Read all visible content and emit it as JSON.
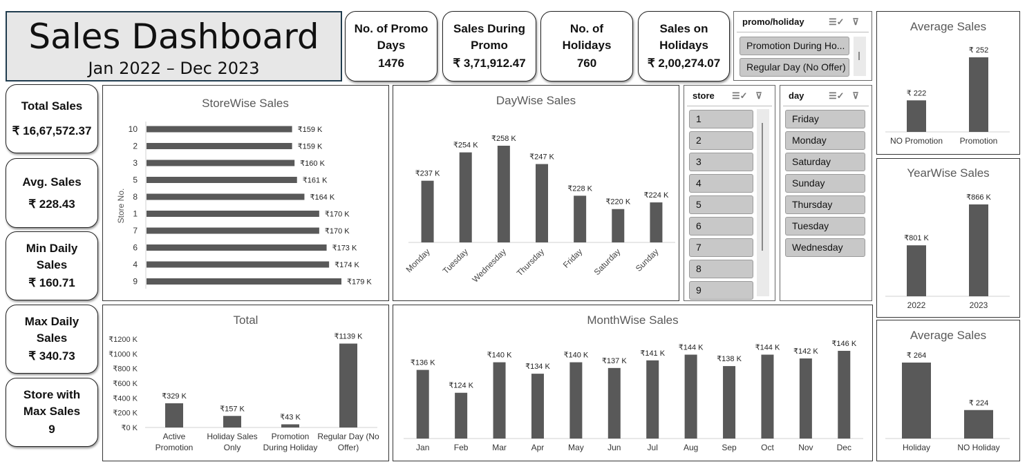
{
  "header": {
    "title": "Sales Dashboard",
    "subtitle": "Jan 2022 – Dec 2023"
  },
  "top_kpis": [
    {
      "label_lines": [
        "No. of Promo",
        "Days"
      ],
      "value": "1476"
    },
    {
      "label_lines": [
        "Sales During",
        "Promo"
      ],
      "value": "₹ 3,71,912.47"
    },
    {
      "label_lines": [
        "No. of",
        "Holidays"
      ],
      "value": "760"
    },
    {
      "label_lines": [
        "Sales on",
        "Holidays"
      ],
      "value": "₹ 2,00,274.07"
    }
  ],
  "side_kpis": [
    {
      "label_lines": [
        "Total Sales"
      ],
      "value": "₹ 16,67,572.37"
    },
    {
      "label_lines": [
        "Avg. Sales"
      ],
      "value": "₹ 228.43"
    },
    {
      "label_lines": [
        "Min Daily",
        "Sales"
      ],
      "value": "₹ 160.71"
    },
    {
      "label_lines": [
        "Max Daily",
        "Sales"
      ],
      "value": "₹ 340.73"
    },
    {
      "label_lines": [
        "Store with",
        "Max Sales"
      ],
      "value": "9"
    }
  ],
  "slicers": {
    "promo": {
      "title": "promo/holiday",
      "items": [
        "Promotion During Ho...",
        "Regular Day (No Offer)"
      ]
    },
    "store": {
      "title": "store",
      "items": [
        "1",
        "2",
        "3",
        "4",
        "5",
        "6",
        "7",
        "8",
        "9"
      ]
    },
    "day": {
      "title": "day",
      "items": [
        "Friday",
        "Monday",
        "Saturday",
        "Sunday",
        "Thursday",
        "Tuesday",
        "Wednesday"
      ]
    }
  },
  "colors": {
    "bar": "#595959",
    "axis": "#d0d0d0",
    "title_text": "#595959",
    "slicer_item": "#c8c8c8"
  },
  "icons": [
    "multi-select-icon",
    "clear-filter-icon"
  ],
  "chart_data": [
    {
      "id": "storewise",
      "type": "bar",
      "orientation": "horizontal",
      "title": "StoreWise Sales",
      "ylabel": "Store No.",
      "categories": [
        "10",
        "2",
        "3",
        "5",
        "8",
        "1",
        "7",
        "6",
        "4",
        "9"
      ],
      "values": [
        159,
        159,
        160,
        161,
        164,
        170,
        170,
        173,
        174,
        179
      ],
      "labels": [
        "₹159 K",
        "₹159 K",
        "₹160 K",
        "₹161 K",
        "₹164 K",
        "₹170 K",
        "₹170 K",
        "₹173 K",
        "₹174 K",
        "₹179 K"
      ]
    },
    {
      "id": "daywise",
      "type": "bar",
      "title": "DayWise Sales",
      "categories": [
        "Monday",
        "Tuesday",
        "Wednesday",
        "Thursday",
        "Friday",
        "Saturday",
        "Sunday"
      ],
      "values": [
        237,
        254,
        258,
        247,
        228,
        220,
        224
      ],
      "labels": [
        "₹237 K",
        "₹254 K",
        "₹258 K",
        "₹247 K",
        "₹228 K",
        "₹220 K",
        "₹224 K"
      ]
    },
    {
      "id": "avg_promo",
      "type": "bar",
      "title": "Average Sales",
      "categories": [
        "NO Promotion",
        "Promotion"
      ],
      "values": [
        222,
        252
      ],
      "labels": [
        "₹ 222",
        "₹ 252"
      ]
    },
    {
      "id": "yearwise",
      "type": "bar",
      "title": "YearWise Sales",
      "categories": [
        "2022",
        "2023"
      ],
      "values": [
        801,
        866
      ],
      "labels": [
        "₹801 K",
        "₹866 K"
      ]
    },
    {
      "id": "total",
      "type": "bar",
      "title": "Total",
      "categories": [
        [
          "Active",
          "Promotion"
        ],
        [
          "Holiday Sales",
          "Only"
        ],
        [
          "Promotion",
          "During Holiday"
        ],
        [
          "Regular Day (No",
          "Offer)"
        ]
      ],
      "values": [
        329,
        157,
        43,
        1139
      ],
      "labels": [
        "₹329 K",
        "₹157 K",
        "₹43 K",
        "₹1139 K"
      ],
      "yticks": [
        "₹0 K",
        "₹200 K",
        "₹400 K",
        "₹600 K",
        "₹800 K",
        "₹1000 K",
        "₹1200 K"
      ],
      "ylim": [
        0,
        1200
      ]
    },
    {
      "id": "monthwise",
      "type": "bar",
      "title": "MonthWise Sales",
      "categories": [
        "Jan",
        "Feb",
        "Mar",
        "Apr",
        "May",
        "Jun",
        "Jul",
        "Aug",
        "Sep",
        "Oct",
        "Nov",
        "Dec"
      ],
      "values": [
        136,
        124,
        140,
        134,
        140,
        137,
        141,
        144,
        138,
        144,
        142,
        146
      ],
      "labels": [
        "₹136 K",
        "₹124 K",
        "₹140 K",
        "₹134 K",
        "₹140 K",
        "₹137 K",
        "₹141 K",
        "₹144 K",
        "₹138 K",
        "₹144 K",
        "₹142 K",
        "₹146 K"
      ]
    },
    {
      "id": "avg_holiday",
      "type": "bar",
      "title": "Average Sales",
      "categories": [
        "Holiday",
        "NO Holiday"
      ],
      "values": [
        264,
        224
      ],
      "labels": [
        "₹ 264",
        "₹ 224"
      ]
    }
  ]
}
